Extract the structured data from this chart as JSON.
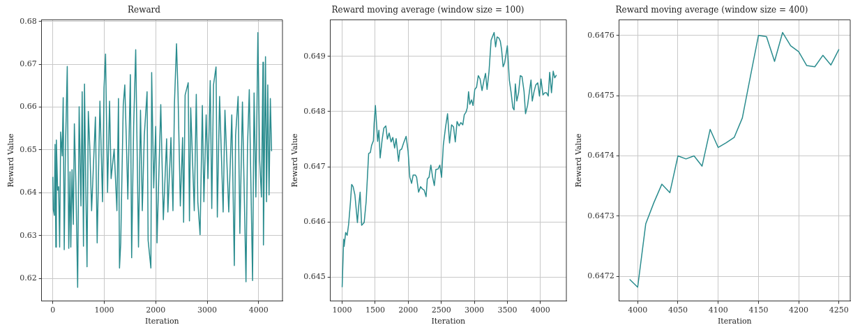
{
  "chart_data": [
    {
      "type": "line",
      "title": "Reward",
      "xlabel": "Iteration",
      "ylabel": "Reward Value",
      "xlim": [
        -217,
        4463
      ],
      "ylim": [
        0.6147,
        0.6804
      ],
      "xticks": [
        0,
        1000,
        2000,
        3000,
        4000
      ],
      "yticks": [
        0.62,
        0.63,
        0.64,
        0.65,
        0.66,
        0.67,
        0.68
      ],
      "grid": true,
      "marker": "none",
      "x": [
        0,
        10,
        30,
        44,
        59,
        69,
        94,
        113,
        133,
        153,
        182,
        202,
        222,
        246,
        281,
        310,
        335,
        350,
        374,
        399,
        419,
        448,
        483,
        512,
        547,
        571,
        596,
        616,
        640,
        665,
        690,
        719,
        754,
        828,
        862,
        916,
        966,
        995,
        1025,
        1064,
        1103,
        1133,
        1192,
        1246,
        1276,
        1296,
        1320,
        1369,
        1399,
        1429,
        1458,
        1507,
        1532,
        1571,
        1611,
        1665,
        1704,
        1739,
        1778,
        1832,
        1852,
        1906,
        1921,
        1961,
        2000,
        2025,
        2098,
        2148,
        2212,
        2236,
        2296,
        2335,
        2364,
        2404,
        2433,
        2478,
        2522,
        2542,
        2571,
        2631,
        2655,
        2680,
        2749,
        2788,
        2818,
        2862,
        2906,
        2936,
        2980,
        3015,
        3059,
        3089,
        3123,
        3172,
        3197,
        3241,
        3310,
        3345,
        3419,
        3478,
        3527,
        3552,
        3601,
        3635,
        3685,
        3754,
        3783,
        3818,
        3847,
        3882,
        3911,
        3946,
        3985,
        4020,
        4054,
        4084,
        4093,
        4133,
        4153,
        4177,
        4202,
        4227,
        4251
      ],
      "series": [
        {
          "color": "#2a8c8e",
          "values": [
            0.6437,
            0.6361,
            0.6347,
            0.6513,
            0.6273,
            0.6523,
            0.6406,
            0.6414,
            0.6273,
            0.6542,
            0.6486,
            0.6622,
            0.6267,
            0.6502,
            0.6695,
            0.627,
            0.6449,
            0.6273,
            0.6454,
            0.6326,
            0.6561,
            0.6422,
            0.6179,
            0.6601,
            0.6369,
            0.6636,
            0.6275,
            0.6654,
            0.6422,
            0.6227,
            0.659,
            0.6507,
            0.6358,
            0.6577,
            0.6283,
            0.6614,
            0.6379,
            0.6644,
            0.6724,
            0.6401,
            0.6614,
            0.6433,
            0.6502,
            0.6358,
            0.662,
            0.6224,
            0.6283,
            0.6604,
            0.6652,
            0.6523,
            0.6385,
            0.6676,
            0.6248,
            0.6555,
            0.6734,
            0.6273,
            0.6593,
            0.6358,
            0.6534,
            0.6636,
            0.6289,
            0.6224,
            0.6681,
            0.6411,
            0.6555,
            0.6283,
            0.6606,
            0.6337,
            0.6526,
            0.6355,
            0.6529,
            0.6358,
            0.6609,
            0.6748,
            0.6633,
            0.6369,
            0.6529,
            0.6331,
            0.6628,
            0.6657,
            0.6334,
            0.6598,
            0.6358,
            0.663,
            0.6379,
            0.6302,
            0.6604,
            0.6379,
            0.6582,
            0.6433,
            0.6662,
            0.6363,
            0.6652,
            0.6694,
            0.6343,
            0.6625,
            0.6355,
            0.6593,
            0.6355,
            0.6582,
            0.623,
            0.6534,
            0.6625,
            0.6305,
            0.6612,
            0.6192,
            0.6507,
            0.6641,
            0.6438,
            0.6195,
            0.6633,
            0.639,
            0.6774,
            0.6475,
            0.639,
            0.6705,
            0.6278,
            0.6718,
            0.6379,
            0.6652,
            0.6395,
            0.662,
            0.6497
          ]
        }
      ]
    },
    {
      "type": "line",
      "title": "Reward moving average (window size = 100)",
      "xlabel": "Iteration",
      "ylabel": "Reward Value",
      "xlim": [
        822,
        4393
      ],
      "ylim": [
        0.64457,
        0.64966
      ],
      "xticks": [
        1000,
        1500,
        2000,
        2500,
        3000,
        3500,
        4000
      ],
      "yticks": [
        0.645,
        0.646,
        0.647,
        0.648,
        0.649
      ],
      "grid": true,
      "marker": "none",
      "x": [
        1000,
        1023,
        1030,
        1053,
        1076,
        1098,
        1125,
        1144,
        1166,
        1193,
        1231,
        1250,
        1272,
        1295,
        1333,
        1363,
        1401,
        1427,
        1446,
        1473,
        1484,
        1503,
        1537,
        1556,
        1575,
        1605,
        1631,
        1661,
        1684,
        1711,
        1741,
        1767,
        1794,
        1817,
        1854,
        1873,
        1900,
        1930,
        1968,
        1998,
        2024,
        2051,
        2074,
        2108,
        2127,
        2157,
        2187,
        2213,
        2240,
        2270,
        2289,
        2315,
        2342,
        2368,
        2395,
        2418,
        2452,
        2478,
        2504,
        2531,
        2565,
        2595,
        2625,
        2656,
        2686,
        2712,
        2739,
        2769,
        2796,
        2826,
        2848,
        2875,
        2894,
        2913,
        2932,
        2958,
        2981,
        3007,
        3034,
        3060,
        3087,
        3117,
        3147,
        3170,
        3193,
        3223,
        3254,
        3273,
        3300,
        3322,
        3345,
        3372,
        3394,
        3413,
        3436,
        3459,
        3478,
        3500,
        3530,
        3557,
        3583,
        3602,
        3621,
        3643,
        3670,
        3696,
        3722,
        3753,
        3775,
        3806,
        3836,
        3858,
        3877,
        3904,
        3930,
        3960,
        3986,
        4009,
        4039,
        4066,
        4092,
        4119,
        4141,
        4168,
        4194,
        4217,
        4243
      ],
      "series": [
        {
          "color": "#2a8c8e",
          "values": [
            0.64482,
            0.64569,
            0.64556,
            0.64581,
            0.64576,
            0.64596,
            0.64635,
            0.64668,
            0.64664,
            0.64649,
            0.64599,
            0.64629,
            0.64654,
            0.64594,
            0.64599,
            0.64637,
            0.64724,
            0.64726,
            0.64739,
            0.64747,
            0.64778,
            0.64811,
            0.64746,
            0.64766,
            0.64716,
            0.64749,
            0.6477,
            0.64774,
            0.6475,
            0.64761,
            0.64745,
            0.64753,
            0.64734,
            0.64751,
            0.6471,
            0.6473,
            0.64732,
            0.64743,
            0.64755,
            0.64728,
            0.64681,
            0.6467,
            0.64685,
            0.64685,
            0.64681,
            0.64654,
            0.64664,
            0.6466,
            0.64658,
            0.64646,
            0.64678,
            0.64681,
            0.64703,
            0.64682,
            0.64666,
            0.64695,
            0.64696,
            0.64703,
            0.64681,
            0.64739,
            0.64772,
            0.64796,
            0.64743,
            0.64776,
            0.64772,
            0.64745,
            0.64782,
            0.64774,
            0.6478,
            0.64776,
            0.64794,
            0.64799,
            0.64807,
            0.64836,
            0.64813,
            0.64821,
            0.64811,
            0.6484,
            0.64844,
            0.64865,
            0.64859,
            0.64838,
            0.64857,
            0.64869,
            0.6484,
            0.64873,
            0.64929,
            0.64935,
            0.64943,
            0.64917,
            0.64935,
            0.64933,
            0.64927,
            0.64912,
            0.64881,
            0.64888,
            0.64902,
            0.64919,
            0.64857,
            0.64834,
            0.64807,
            0.64803,
            0.6485,
            0.64819,
            0.64834,
            0.64865,
            0.64863,
            0.64836,
            0.64796,
            0.64811,
            0.64838,
            0.64857,
            0.64819,
            0.64836,
            0.64848,
            0.64852,
            0.64828,
            0.64859,
            0.6483,
            0.64834,
            0.64834,
            0.64828,
            0.64871,
            0.64834,
            0.64873,
            0.64861,
            0.64866
          ]
        }
      ]
    },
    {
      "type": "line",
      "title": "Reward moving average (window size = 400)",
      "xlabel": "Iteration",
      "ylabel": "Reward Value",
      "xlim": [
        3977,
        4264
      ],
      "ylim": [
        0.647159,
        0.647626
      ],
      "xticks": [
        4000,
        4050,
        4100,
        4150,
        4200,
        4250
      ],
      "yticks": [
        0.6472,
        0.6473,
        0.6474,
        0.6475,
        0.6476
      ],
      "grid": true,
      "marker": "none",
      "x": [
        3990,
        4000,
        4010,
        4020,
        4030,
        4040,
        4050,
        4060,
        4070,
        4080,
        4090,
        4100,
        4110,
        4120,
        4130,
        4140,
        4150,
        4160,
        4170,
        4180,
        4190,
        4200,
        4210,
        4220,
        4230,
        4240,
        4250
      ],
      "series": [
        {
          "color": "#2a8c8e",
          "values": [
            0.647195,
            0.647182,
            0.647287,
            0.647322,
            0.647353,
            0.647339,
            0.6474,
            0.647395,
            0.6474,
            0.647383,
            0.647444,
            0.647414,
            0.647422,
            0.647431,
            0.647463,
            0.647532,
            0.6476,
            0.647598,
            0.647557,
            0.647605,
            0.647583,
            0.647573,
            0.64755,
            0.647548,
            0.647567,
            0.647551,
            0.647577
          ]
        }
      ]
    }
  ]
}
